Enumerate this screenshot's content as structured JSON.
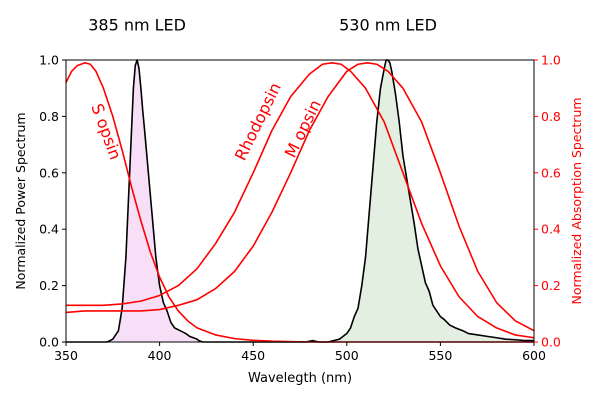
{
  "chart_data": {
    "type": "line",
    "title": "",
    "xlabel": "Wavelegth (nm)",
    "ylabel": "Normalized Power Spectrum",
    "y2label": "Normalized Absorption Spectrum",
    "xlim": [
      350,
      600
    ],
    "ylim": [
      0,
      1.0
    ],
    "y2lim": [
      0,
      1.0
    ],
    "grid": false,
    "xticks": [
      350,
      400,
      450,
      500,
      550,
      600
    ],
    "yticks": [
      0.0,
      0.2,
      0.4,
      0.6,
      0.8,
      1.0
    ],
    "ytick_labels": [
      "0.0",
      "0.2",
      "0.4",
      "0.6",
      "0.8",
      "1.0"
    ],
    "y2ticks": [
      0.0,
      0.2,
      0.4,
      0.6,
      0.8,
      1.0
    ],
    "y2tick_labels": [
      "0.0",
      "0.2",
      "0.4",
      "0.6",
      "0.8",
      "1.0"
    ],
    "annotations": [
      {
        "text": "385 nm LED",
        "x": 388,
        "y": 1.12,
        "color": "#000000"
      },
      {
        "text": "530 nm LED",
        "x": 522,
        "y": 1.12,
        "color": "#000000"
      },
      {
        "text": "S opsin",
        "x": 371,
        "y": 0.745,
        "color": "#ff0000",
        "rotation": 70
      },
      {
        "text": "Rhodopsin",
        "x": 453,
        "y": 0.78,
        "color": "#ff0000",
        "rotation": -64
      },
      {
        "text": "M opsin",
        "x": 477,
        "y": 0.755,
        "color": "#ff0000",
        "rotation": -64
      }
    ],
    "colors": {
      "led": "#000000",
      "opsin": "#ff0000",
      "led385_fill": "#f7e0f7",
      "led530_fill": "#e3efe0",
      "secondary_axis": "#ff0000"
    },
    "series": [
      {
        "axis": "left",
        "color": "#000000",
        "fill": "#f7e0f7",
        "points": [
          [
            350,
            0.0
          ],
          [
            372,
            0.0
          ],
          [
            375,
            0.01
          ],
          [
            378,
            0.04
          ],
          [
            380,
            0.12
          ],
          [
            382,
            0.3
          ],
          [
            384,
            0.6
          ],
          [
            386,
            0.9
          ],
          [
            387,
            0.98
          ],
          [
            388,
            1.0
          ],
          [
            389,
            0.97
          ],
          [
            390,
            0.9
          ],
          [
            391,
            0.82
          ],
          [
            392,
            0.75
          ],
          [
            394,
            0.6
          ],
          [
            396,
            0.45
          ],
          [
            398,
            0.3
          ],
          [
            400,
            0.2
          ],
          [
            402,
            0.14
          ],
          [
            404,
            0.11
          ],
          [
            406,
            0.07
          ],
          [
            408,
            0.05
          ],
          [
            411,
            0.04
          ],
          [
            414,
            0.03
          ],
          [
            416,
            0.02
          ],
          [
            418,
            0.015
          ],
          [
            420,
            0.01
          ],
          [
            421,
            0.005
          ],
          [
            423,
            0.0
          ],
          [
            478,
            0.0
          ]
        ]
      },
      {
        "axis": "left",
        "color": "#000000",
        "fill": "#e3efe0",
        "points": [
          [
            478,
            0.0
          ],
          [
            482,
            0.005
          ],
          [
            485,
            0.0
          ],
          [
            490,
            0.0
          ],
          [
            493,
            0.005
          ],
          [
            496,
            0.01
          ],
          [
            498,
            0.02
          ],
          [
            500,
            0.03
          ],
          [
            502,
            0.05
          ],
          [
            504,
            0.09
          ],
          [
            506,
            0.12
          ],
          [
            508,
            0.2
          ],
          [
            510,
            0.3
          ],
          [
            512,
            0.46
          ],
          [
            514,
            0.62
          ],
          [
            516,
            0.78
          ],
          [
            518,
            0.9
          ],
          [
            520,
            0.97
          ],
          [
            521,
            1.0
          ],
          [
            522,
            1.0
          ],
          [
            523,
            0.99
          ],
          [
            524,
            0.96
          ],
          [
            526,
            0.88
          ],
          [
            528,
            0.78
          ],
          [
            530,
            0.66
          ],
          [
            532,
            0.58
          ],
          [
            534,
            0.5
          ],
          [
            536,
            0.42
          ],
          [
            538,
            0.33
          ],
          [
            540,
            0.27
          ],
          [
            542,
            0.21
          ],
          [
            544,
            0.18
          ],
          [
            546,
            0.13
          ],
          [
            548,
            0.11
          ],
          [
            550,
            0.09
          ],
          [
            552,
            0.08
          ],
          [
            555,
            0.06
          ],
          [
            558,
            0.05
          ],
          [
            562,
            0.04
          ],
          [
            565,
            0.03
          ],
          [
            570,
            0.025
          ],
          [
            575,
            0.02
          ],
          [
            580,
            0.015
          ],
          [
            585,
            0.01
          ],
          [
            590,
            0.008
          ],
          [
            595,
            0.005
          ],
          [
            600,
            0.005
          ]
        ]
      },
      {
        "axis": "right",
        "color": "#ff0000",
        "points": [
          [
            350,
            0.92
          ],
          [
            353,
            0.96
          ],
          [
            356,
            0.98
          ],
          [
            360,
            0.99
          ],
          [
            363,
            0.985
          ],
          [
            366,
            0.96
          ],
          [
            370,
            0.9
          ],
          [
            375,
            0.8
          ],
          [
            380,
            0.68
          ],
          [
            385,
            0.55
          ],
          [
            390,
            0.43
          ],
          [
            395,
            0.32
          ],
          [
            400,
            0.23
          ],
          [
            405,
            0.16
          ],
          [
            410,
            0.11
          ],
          [
            415,
            0.075
          ],
          [
            420,
            0.05
          ],
          [
            430,
            0.025
          ],
          [
            440,
            0.012
          ],
          [
            450,
            0.006
          ],
          [
            460,
            0.003
          ],
          [
            480,
            0.0
          ],
          [
            600,
            0.0
          ]
        ]
      },
      {
        "axis": "right",
        "color": "#ff0000",
        "points": [
          [
            350,
            0.13
          ],
          [
            360,
            0.13
          ],
          [
            370,
            0.13
          ],
          [
            380,
            0.135
          ],
          [
            390,
            0.145
          ],
          [
            400,
            0.165
          ],
          [
            410,
            0.2
          ],
          [
            420,
            0.26
          ],
          [
            430,
            0.35
          ],
          [
            440,
            0.46
          ],
          [
            450,
            0.6
          ],
          [
            460,
            0.75
          ],
          [
            470,
            0.87
          ],
          [
            480,
            0.95
          ],
          [
            487,
            0.985
          ],
          [
            492,
            0.99
          ],
          [
            497,
            0.985
          ],
          [
            502,
            0.96
          ],
          [
            510,
            0.9
          ],
          [
            520,
            0.78
          ],
          [
            530,
            0.6
          ],
          [
            540,
            0.42
          ],
          [
            550,
            0.27
          ],
          [
            560,
            0.16
          ],
          [
            570,
            0.09
          ],
          [
            580,
            0.05
          ],
          [
            590,
            0.025
          ],
          [
            600,
            0.015
          ]
        ]
      },
      {
        "axis": "right",
        "color": "#ff0000",
        "points": [
          [
            350,
            0.105
          ],
          [
            360,
            0.11
          ],
          [
            370,
            0.11
          ],
          [
            380,
            0.11
          ],
          [
            390,
            0.11
          ],
          [
            400,
            0.115
          ],
          [
            410,
            0.13
          ],
          [
            420,
            0.15
          ],
          [
            430,
            0.19
          ],
          [
            440,
            0.25
          ],
          [
            450,
            0.34
          ],
          [
            460,
            0.46
          ],
          [
            470,
            0.6
          ],
          [
            480,
            0.75
          ],
          [
            490,
            0.87
          ],
          [
            500,
            0.96
          ],
          [
            506,
            0.985
          ],
          [
            511,
            0.99
          ],
          [
            516,
            0.985
          ],
          [
            522,
            0.96
          ],
          [
            530,
            0.9
          ],
          [
            540,
            0.78
          ],
          [
            550,
            0.6
          ],
          [
            560,
            0.41
          ],
          [
            570,
            0.25
          ],
          [
            580,
            0.14
          ],
          [
            590,
            0.075
          ],
          [
            600,
            0.04
          ]
        ]
      }
    ]
  }
}
